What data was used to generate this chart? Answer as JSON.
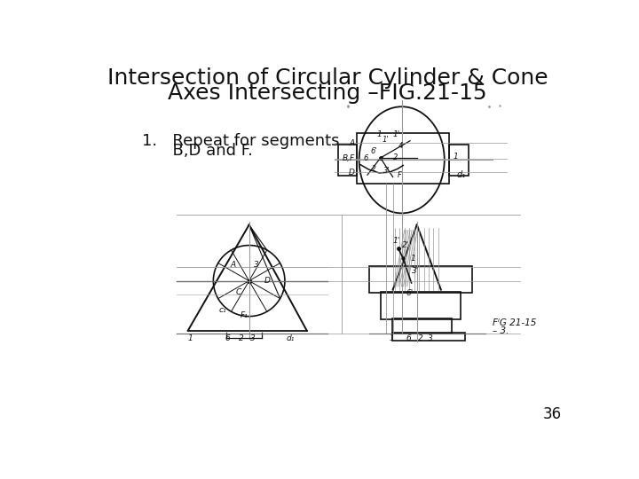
{
  "title_line1": "Intersection of Circular Cylinder & Cone",
  "title_line2": "Axes Intersecting –FIG.21-15",
  "bullet_line1": "1.   Repeat for segments",
  "bullet_line2": "      B,D and F.",
  "fig_label_line1": "FᴵG 21-15",
  "fig_label_line2": "– 3.",
  "page_number": "36",
  "bg_color": "#ffffff",
  "line_color": "#111111",
  "light_line_color": "#999999",
  "title_fontsize": 18,
  "body_fontsize": 13
}
